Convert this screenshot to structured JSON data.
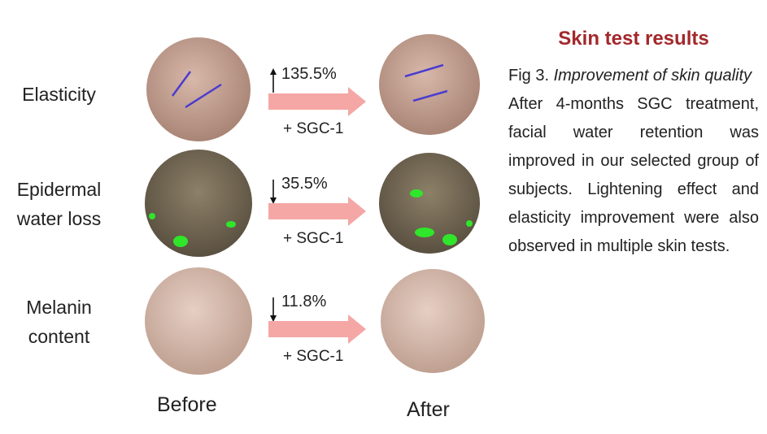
{
  "title": "Skin test results",
  "caption": {
    "label": "Fig 3.",
    "emphasis": "Improvement of skin quality"
  },
  "body": "After 4-months SGC treatment, facial water retention was improved in our selected group of subjects. Lightening effect and elasticity improvement were also observed in multiple skin tests.",
  "rows": [
    {
      "label": "Elasticity",
      "change": "135.5%",
      "direction": "up",
      "treatment": "+ SGC-1"
    },
    {
      "label": "Epidermal water loss",
      "change": "35.5%",
      "direction": "down",
      "treatment": "+ SGC-1"
    },
    {
      "label": "Melanin content",
      "change": "11.8%",
      "direction": "down",
      "treatment": "+ SGC-1"
    }
  ],
  "columns": [
    "Before",
    "After"
  ]
}
